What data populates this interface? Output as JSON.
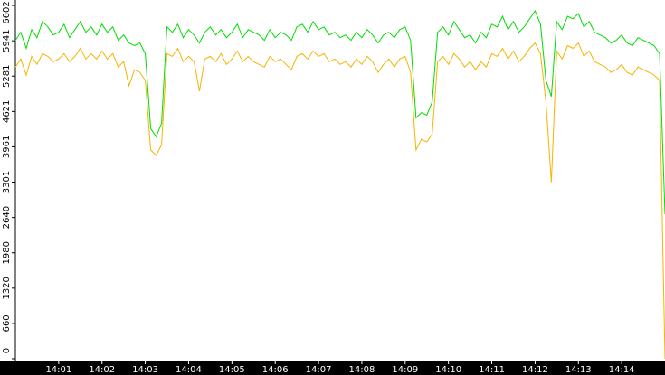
{
  "chart_data": {
    "type": "line",
    "series": [
      {
        "color": "#00dd00",
        "values": [
          5950,
          6100,
          5800,
          6150,
          6000,
          6300,
          6200,
          6050,
          6100,
          6250,
          6000,
          6150,
          6300,
          6100,
          6200,
          6050,
          6250,
          6100,
          6200,
          5950,
          6050,
          5900,
          5850,
          5900,
          5700,
          4300,
          4150,
          4400,
          6200,
          6100,
          6250,
          6000,
          6150,
          6050,
          5900,
          6100,
          6200,
          6050,
          6150,
          6000,
          6100,
          6250,
          6000,
          6150,
          6100,
          6050,
          5950,
          6150,
          6000,
          6100,
          6050,
          5950,
          6200,
          6250,
          6100,
          6300,
          6150,
          6200,
          6050,
          6100,
          6000,
          6050,
          5950,
          6100,
          6000,
          6150,
          6050,
          5900,
          6050,
          6100,
          6000,
          6150,
          6200,
          5950,
          4500,
          4600,
          4550,
          4800,
          6100,
          6200,
          6050,
          6300,
          6150,
          6000,
          6050,
          5900,
          6100,
          6000,
          6250,
          6200,
          6400,
          6150,
          6300,
          6100,
          6200,
          6350,
          6500,
          6250,
          5200,
          4900,
          6300,
          6150,
          6400,
          6350,
          6450,
          6200,
          6300,
          6100,
          6050,
          6000,
          5900,
          5950,
          6050,
          5900,
          5850,
          6000,
          5950,
          5900,
          5850,
          5700,
          2700
        ]
      },
      {
        "color": "#f5b400",
        "values": [
          5450,
          5600,
          5300,
          5650,
          5500,
          5700,
          5650,
          5550,
          5600,
          5700,
          5550,
          5650,
          5800,
          5600,
          5700,
          5600,
          5750,
          5600,
          5700,
          5450,
          5550,
          5100,
          5400,
          5350,
          5200,
          3900,
          3800,
          4000,
          5700,
          5650,
          5800,
          5550,
          5650,
          5550,
          5000,
          5600,
          5650,
          5550,
          5700,
          5500,
          5600,
          5750,
          5550,
          5650,
          5550,
          5500,
          5450,
          5650,
          5550,
          5600,
          5500,
          5400,
          5650,
          5700,
          5600,
          5750,
          5650,
          5700,
          5550,
          5600,
          5500,
          5550,
          5450,
          5600,
          5500,
          5650,
          5550,
          5350,
          5500,
          5600,
          5450,
          5600,
          5650,
          5350,
          3900,
          4100,
          4050,
          4200,
          5550,
          5650,
          5500,
          5700,
          5600,
          5450,
          5550,
          5400,
          5550,
          5450,
          5700,
          5650,
          5800,
          5600,
          5750,
          5550,
          5650,
          5800,
          5900,
          5700,
          4800,
          3300,
          5750,
          5600,
          5850,
          5800,
          5900,
          5650,
          5750,
          5550,
          5500,
          5450,
          5350,
          5400,
          5500,
          5350,
          5300,
          5450,
          5400,
          5350,
          5300,
          5200,
          0
        ]
      }
    ],
    "xlim": [
      0,
      120
    ],
    "xticks": [
      {
        "value": 8,
        "label": "14:01"
      },
      {
        "value": 16,
        "label": "14:02"
      },
      {
        "value": 24,
        "label": "14:03"
      },
      {
        "value": 32,
        "label": "14:04"
      },
      {
        "value": 40,
        "label": "14:05"
      },
      {
        "value": 48,
        "label": "14:06"
      },
      {
        "value": 56,
        "label": "14:07"
      },
      {
        "value": 64,
        "label": "14:08"
      },
      {
        "value": 72,
        "label": "14:09"
      },
      {
        "value": 80,
        "label": "14:10"
      },
      {
        "value": 88,
        "label": "14:11"
      },
      {
        "value": 96,
        "label": "14:12"
      },
      {
        "value": 104,
        "label": "14:13"
      },
      {
        "value": 112,
        "label": "14:14"
      }
    ],
    "ylim": [
      0,
      6602
    ],
    "yticks": [
      0,
      660,
      1320,
      1980,
      2640,
      3301,
      3961,
      4621,
      5281,
      5941,
      6602
    ]
  }
}
